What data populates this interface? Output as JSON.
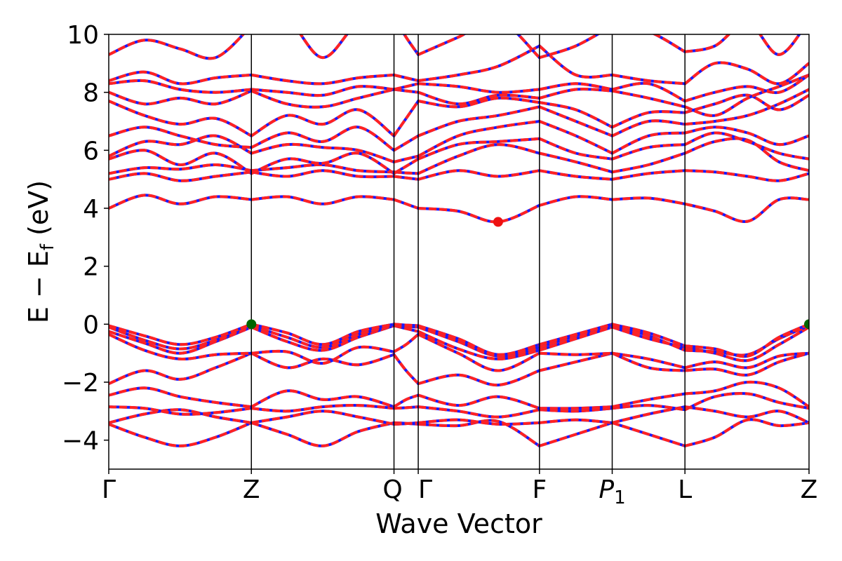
{
  "chart_data": {
    "type": "line",
    "title": "",
    "xlabel": "Wave Vector",
    "ylabel_parts": [
      "E − E",
      "f",
      " (eV)"
    ],
    "ylim": [
      -5,
      10
    ],
    "yticks": [
      -4,
      -2,
      0,
      2,
      4,
      6,
      8,
      10
    ],
    "ytick_labels": [
      "−4",
      "−2",
      "0",
      "2",
      "4",
      "6",
      "8",
      "10"
    ],
    "xlim": [
      0,
      4.91
    ],
    "kpoints": [
      {
        "label": "Γ",
        "x": 0
      },
      {
        "label": "Z",
        "x": 1.0
      },
      {
        "label": "Q",
        "x": 2.0
      },
      {
        "label": "Γ",
        "x": 2.17
      },
      {
        "label": "F",
        "x": 3.02
      },
      {
        "label": "P",
        "sub": "1",
        "italic": true,
        "x": 3.53
      },
      {
        "label": "L",
        "x": 4.04
      },
      {
        "label": "Z",
        "x": 4.91
      }
    ],
    "grid": false,
    "series_styles": [
      {
        "color": "#0000ff",
        "style": "solid"
      },
      {
        "color": "#ff0000",
        "style": "dashed"
      }
    ],
    "band_color_red": "#ff2222",
    "band_color_blue": "#1a1aff",
    "markers": [
      {
        "kind": "cbm",
        "x": 2.73,
        "y": 3.53,
        "color": "#ee1111"
      },
      {
        "kind": "vbm",
        "x": 1.0,
        "y": 0.0,
        "color": "#006600"
      },
      {
        "kind": "vbm",
        "x": 4.91,
        "y": 0.0,
        "color": "#006600"
      }
    ],
    "segments": [
      {
        "x": [
          0,
          0.25,
          0.5,
          0.75,
          1.0
        ],
        "bands": [
          [
            -3.45,
            -3.9,
            -4.2,
            -3.9,
            -3.4
          ],
          [
            -3.4,
            -3.1,
            -2.95,
            -3.2,
            -3.4
          ],
          [
            -2.85,
            -2.9,
            -3.1,
            -3.05,
            -2.9
          ],
          [
            -2.45,
            -2.2,
            -2.5,
            -2.7,
            -2.85
          ],
          [
            -2.05,
            -1.6,
            -1.9,
            -1.5,
            -1.0
          ],
          [
            -0.35,
            -0.9,
            -1.2,
            -1.05,
            -1.0
          ],
          [
            -0.25,
            -0.65,
            -1.0,
            -0.6,
            -0.1
          ],
          [
            -0.1,
            -0.55,
            -0.85,
            -0.55,
            -0.05
          ],
          [
            -0.05,
            -0.4,
            -0.7,
            -0.45,
            0.0
          ],
          [
            4.0,
            4.45,
            4.15,
            4.4,
            4.3
          ],
          [
            5.0,
            5.2,
            4.95,
            5.1,
            5.25
          ],
          [
            5.2,
            5.4,
            5.35,
            5.5,
            5.3
          ],
          [
            5.7,
            6.0,
            5.5,
            5.9,
            5.2
          ],
          [
            5.8,
            6.3,
            6.2,
            6.5,
            5.9
          ],
          [
            6.5,
            6.8,
            6.5,
            6.2,
            6.1
          ],
          [
            7.7,
            7.2,
            6.9,
            7.1,
            6.5
          ],
          [
            8.0,
            7.6,
            7.8,
            7.6,
            8.05
          ],
          [
            8.3,
            8.4,
            8.1,
            8.0,
            8.1
          ],
          [
            8.4,
            8.7,
            8.3,
            8.5,
            8.6
          ],
          [
            9.3,
            9.8,
            9.5,
            9.2,
            10.3
          ]
        ]
      },
      {
        "x": [
          1.0,
          1.25,
          1.5,
          1.75,
          2.0
        ],
        "bands": [
          [
            -3.4,
            -3.8,
            -4.2,
            -3.7,
            -3.4
          ],
          [
            -3.4,
            -3.2,
            -3.0,
            -3.2,
            -3.45
          ],
          [
            -2.9,
            -3.0,
            -2.85,
            -2.8,
            -2.9
          ],
          [
            -2.85,
            -2.3,
            -2.6,
            -2.5,
            -2.85
          ],
          [
            -1.0,
            -1.5,
            -1.2,
            -1.4,
            -1.05
          ],
          [
            -1.0,
            -0.95,
            -1.35,
            -0.8,
            -0.95
          ],
          [
            -0.1,
            -0.6,
            -0.9,
            -0.45,
            -0.05
          ],
          [
            -0.05,
            -0.45,
            -0.8,
            -0.35,
            -0.05
          ],
          [
            0.0,
            -0.3,
            -0.7,
            -0.25,
            0.0
          ],
          [
            4.3,
            4.4,
            4.15,
            4.4,
            4.3
          ],
          [
            5.25,
            5.1,
            5.3,
            5.1,
            5.1
          ],
          [
            5.3,
            5.4,
            5.5,
            5.3,
            5.25
          ],
          [
            5.2,
            5.7,
            5.55,
            5.9,
            5.2
          ],
          [
            5.9,
            6.2,
            6.1,
            6.0,
            5.6
          ],
          [
            6.1,
            6.6,
            6.3,
            6.8,
            6.0
          ],
          [
            6.5,
            7.2,
            6.9,
            7.4,
            6.5
          ],
          [
            8.05,
            7.6,
            7.5,
            7.8,
            8.1
          ],
          [
            8.1,
            8.0,
            7.9,
            8.2,
            8.1
          ],
          [
            8.6,
            8.4,
            8.3,
            8.5,
            8.6
          ],
          [
            10.3,
            10.5,
            9.2,
            10.4,
            10.6
          ]
        ]
      },
      {
        "x": [
          2.0,
          2.085,
          2.17
        ],
        "bands": [
          [
            -3.4,
            -3.42,
            -3.45
          ],
          [
            -3.45,
            -3.43,
            -3.4
          ],
          [
            -2.9,
            -2.88,
            -2.85
          ],
          [
            -2.85,
            -2.6,
            -2.45
          ],
          [
            -1.05,
            -1.6,
            -2.05
          ],
          [
            -0.95,
            -0.7,
            -0.35
          ],
          [
            -0.05,
            -0.15,
            -0.25
          ],
          [
            -0.05,
            -0.08,
            -0.1
          ],
          [
            0.0,
            -0.03,
            -0.05
          ],
          [
            4.3,
            4.15,
            4.0
          ],
          [
            5.1,
            5.05,
            5.0
          ],
          [
            5.25,
            5.22,
            5.2
          ],
          [
            5.2,
            5.45,
            5.7
          ],
          [
            5.6,
            5.7,
            5.8
          ],
          [
            6.0,
            6.25,
            6.5
          ],
          [
            6.5,
            7.1,
            7.7
          ],
          [
            8.1,
            8.05,
            8.0
          ],
          [
            8.1,
            8.2,
            8.3
          ],
          [
            8.6,
            8.5,
            8.4
          ],
          [
            10.6,
            9.9,
            9.3
          ]
        ]
      },
      {
        "x": [
          2.17,
          2.45,
          2.73,
          3.02
        ],
        "bands": [
          [
            -3.45,
            -3.5,
            -3.35,
            -4.2
          ],
          [
            -3.4,
            -3.3,
            -3.45,
            -3.4
          ],
          [
            -2.85,
            -3.0,
            -3.2,
            -2.95
          ],
          [
            -2.45,
            -2.8,
            -2.5,
            -2.9
          ],
          [
            -2.05,
            -1.75,
            -2.1,
            -1.6
          ],
          [
            -0.35,
            -1.0,
            -1.6,
            -1.0
          ],
          [
            -0.25,
            -0.85,
            -1.2,
            -0.9
          ],
          [
            -0.1,
            -0.6,
            -1.1,
            -0.8
          ],
          [
            -0.05,
            -0.5,
            -1.05,
            -0.7
          ],
          [
            4.0,
            3.9,
            3.53,
            4.1
          ],
          [
            5.0,
            5.3,
            5.1,
            5.3
          ],
          [
            5.2,
            5.8,
            6.2,
            5.9
          ],
          [
            5.7,
            6.2,
            6.3,
            6.4
          ],
          [
            5.8,
            6.5,
            6.8,
            7.0
          ],
          [
            6.5,
            7.0,
            7.2,
            7.5
          ],
          [
            7.7,
            7.5,
            7.8,
            7.65
          ],
          [
            8.0,
            7.6,
            7.9,
            7.8
          ],
          [
            8.3,
            8.2,
            8.0,
            8.1
          ],
          [
            8.4,
            8.6,
            8.9,
            9.6
          ],
          [
            9.3,
            9.9,
            10.5,
            9.2
          ]
        ]
      },
      {
        "x": [
          3.02,
          3.275,
          3.53
        ],
        "bands": [
          [
            -4.2,
            -3.8,
            -3.4
          ],
          [
            -3.4,
            -3.3,
            -3.4
          ],
          [
            -2.95,
            -3.0,
            -2.9
          ],
          [
            -2.9,
            -2.9,
            -2.85
          ],
          [
            -1.6,
            -1.3,
            -1.0
          ],
          [
            -1.0,
            -1.05,
            -1.0
          ],
          [
            -0.9,
            -0.5,
            -0.1
          ],
          [
            -0.8,
            -0.4,
            -0.05
          ],
          [
            -0.7,
            -0.35,
            0.0
          ],
          [
            4.1,
            4.4,
            4.3
          ],
          [
            5.3,
            5.1,
            5.0
          ],
          [
            5.9,
            5.6,
            5.25
          ],
          [
            6.4,
            5.9,
            5.7
          ],
          [
            7.0,
            6.5,
            5.9
          ],
          [
            7.5,
            7.0,
            6.5
          ],
          [
            7.65,
            7.4,
            6.8
          ],
          [
            7.8,
            8.1,
            8.05
          ],
          [
            8.1,
            8.3,
            8.1
          ],
          [
            9.6,
            8.6,
            8.6
          ],
          [
            9.2,
            9.6,
            10.3
          ]
        ]
      },
      {
        "x": [
          3.53,
          3.785,
          4.04
        ],
        "bands": [
          [
            -3.4,
            -3.8,
            -4.2
          ],
          [
            -3.4,
            -3.1,
            -2.85
          ],
          [
            -2.9,
            -2.8,
            -2.95
          ],
          [
            -2.85,
            -2.6,
            -2.4
          ],
          [
            -1.0,
            -1.5,
            -1.6
          ],
          [
            -1.0,
            -1.2,
            -1.5
          ],
          [
            -0.1,
            -0.5,
            -0.8
          ],
          [
            -0.05,
            -0.4,
            -0.9
          ],
          [
            0.0,
            -0.3,
            -0.75
          ],
          [
            4.3,
            4.35,
            4.15
          ],
          [
            5.0,
            5.2,
            5.3
          ],
          [
            5.25,
            5.5,
            5.9
          ],
          [
            5.7,
            6.1,
            6.2
          ],
          [
            5.9,
            6.5,
            6.6
          ],
          [
            6.5,
            7.0,
            6.9
          ],
          [
            6.8,
            7.3,
            7.3
          ],
          [
            8.05,
            7.8,
            7.5
          ],
          [
            8.1,
            8.3,
            7.7
          ],
          [
            8.6,
            8.4,
            8.3
          ],
          [
            10.3,
            10.1,
            9.4
          ]
        ]
      },
      {
        "x": [
          4.04,
          4.25,
          4.48,
          4.7,
          4.91
        ],
        "bands": [
          [
            -4.2,
            -3.9,
            -3.3,
            -3.5,
            -3.4
          ],
          [
            -2.85,
            -3.0,
            -3.2,
            -3.0,
            -3.4
          ],
          [
            -2.95,
            -2.5,
            -2.4,
            -2.7,
            -2.9
          ],
          [
            -2.4,
            -2.3,
            -2.0,
            -2.2,
            -2.85
          ],
          [
            -1.6,
            -1.55,
            -1.75,
            -1.3,
            -1.0
          ],
          [
            -1.5,
            -1.3,
            -1.5,
            -1.1,
            -1.0
          ],
          [
            -0.8,
            -1.0,
            -1.25,
            -0.7,
            -0.1
          ],
          [
            -0.9,
            -0.95,
            -1.05,
            -0.5,
            -0.05
          ],
          [
            -0.75,
            -0.85,
            -1.1,
            -0.45,
            0.0
          ],
          [
            4.15,
            3.9,
            3.55,
            4.3,
            4.3
          ],
          [
            5.3,
            5.25,
            5.1,
            4.95,
            5.2
          ],
          [
            5.9,
            6.3,
            6.35,
            5.6,
            5.3
          ],
          [
            6.2,
            6.6,
            6.3,
            5.9,
            5.7
          ],
          [
            6.6,
            6.8,
            6.6,
            6.2,
            6.5
          ],
          [
            6.9,
            7.0,
            7.2,
            7.6,
            8.1
          ],
          [
            7.3,
            7.6,
            7.9,
            7.4,
            7.9
          ],
          [
            7.5,
            7.2,
            7.8,
            8.2,
            8.6
          ],
          [
            7.7,
            8.0,
            8.2,
            8.0,
            8.6
          ],
          [
            8.3,
            9.0,
            8.8,
            8.3,
            9.0
          ],
          [
            9.4,
            9.6,
            10.4,
            9.3,
            10.5
          ]
        ]
      }
    ]
  }
}
